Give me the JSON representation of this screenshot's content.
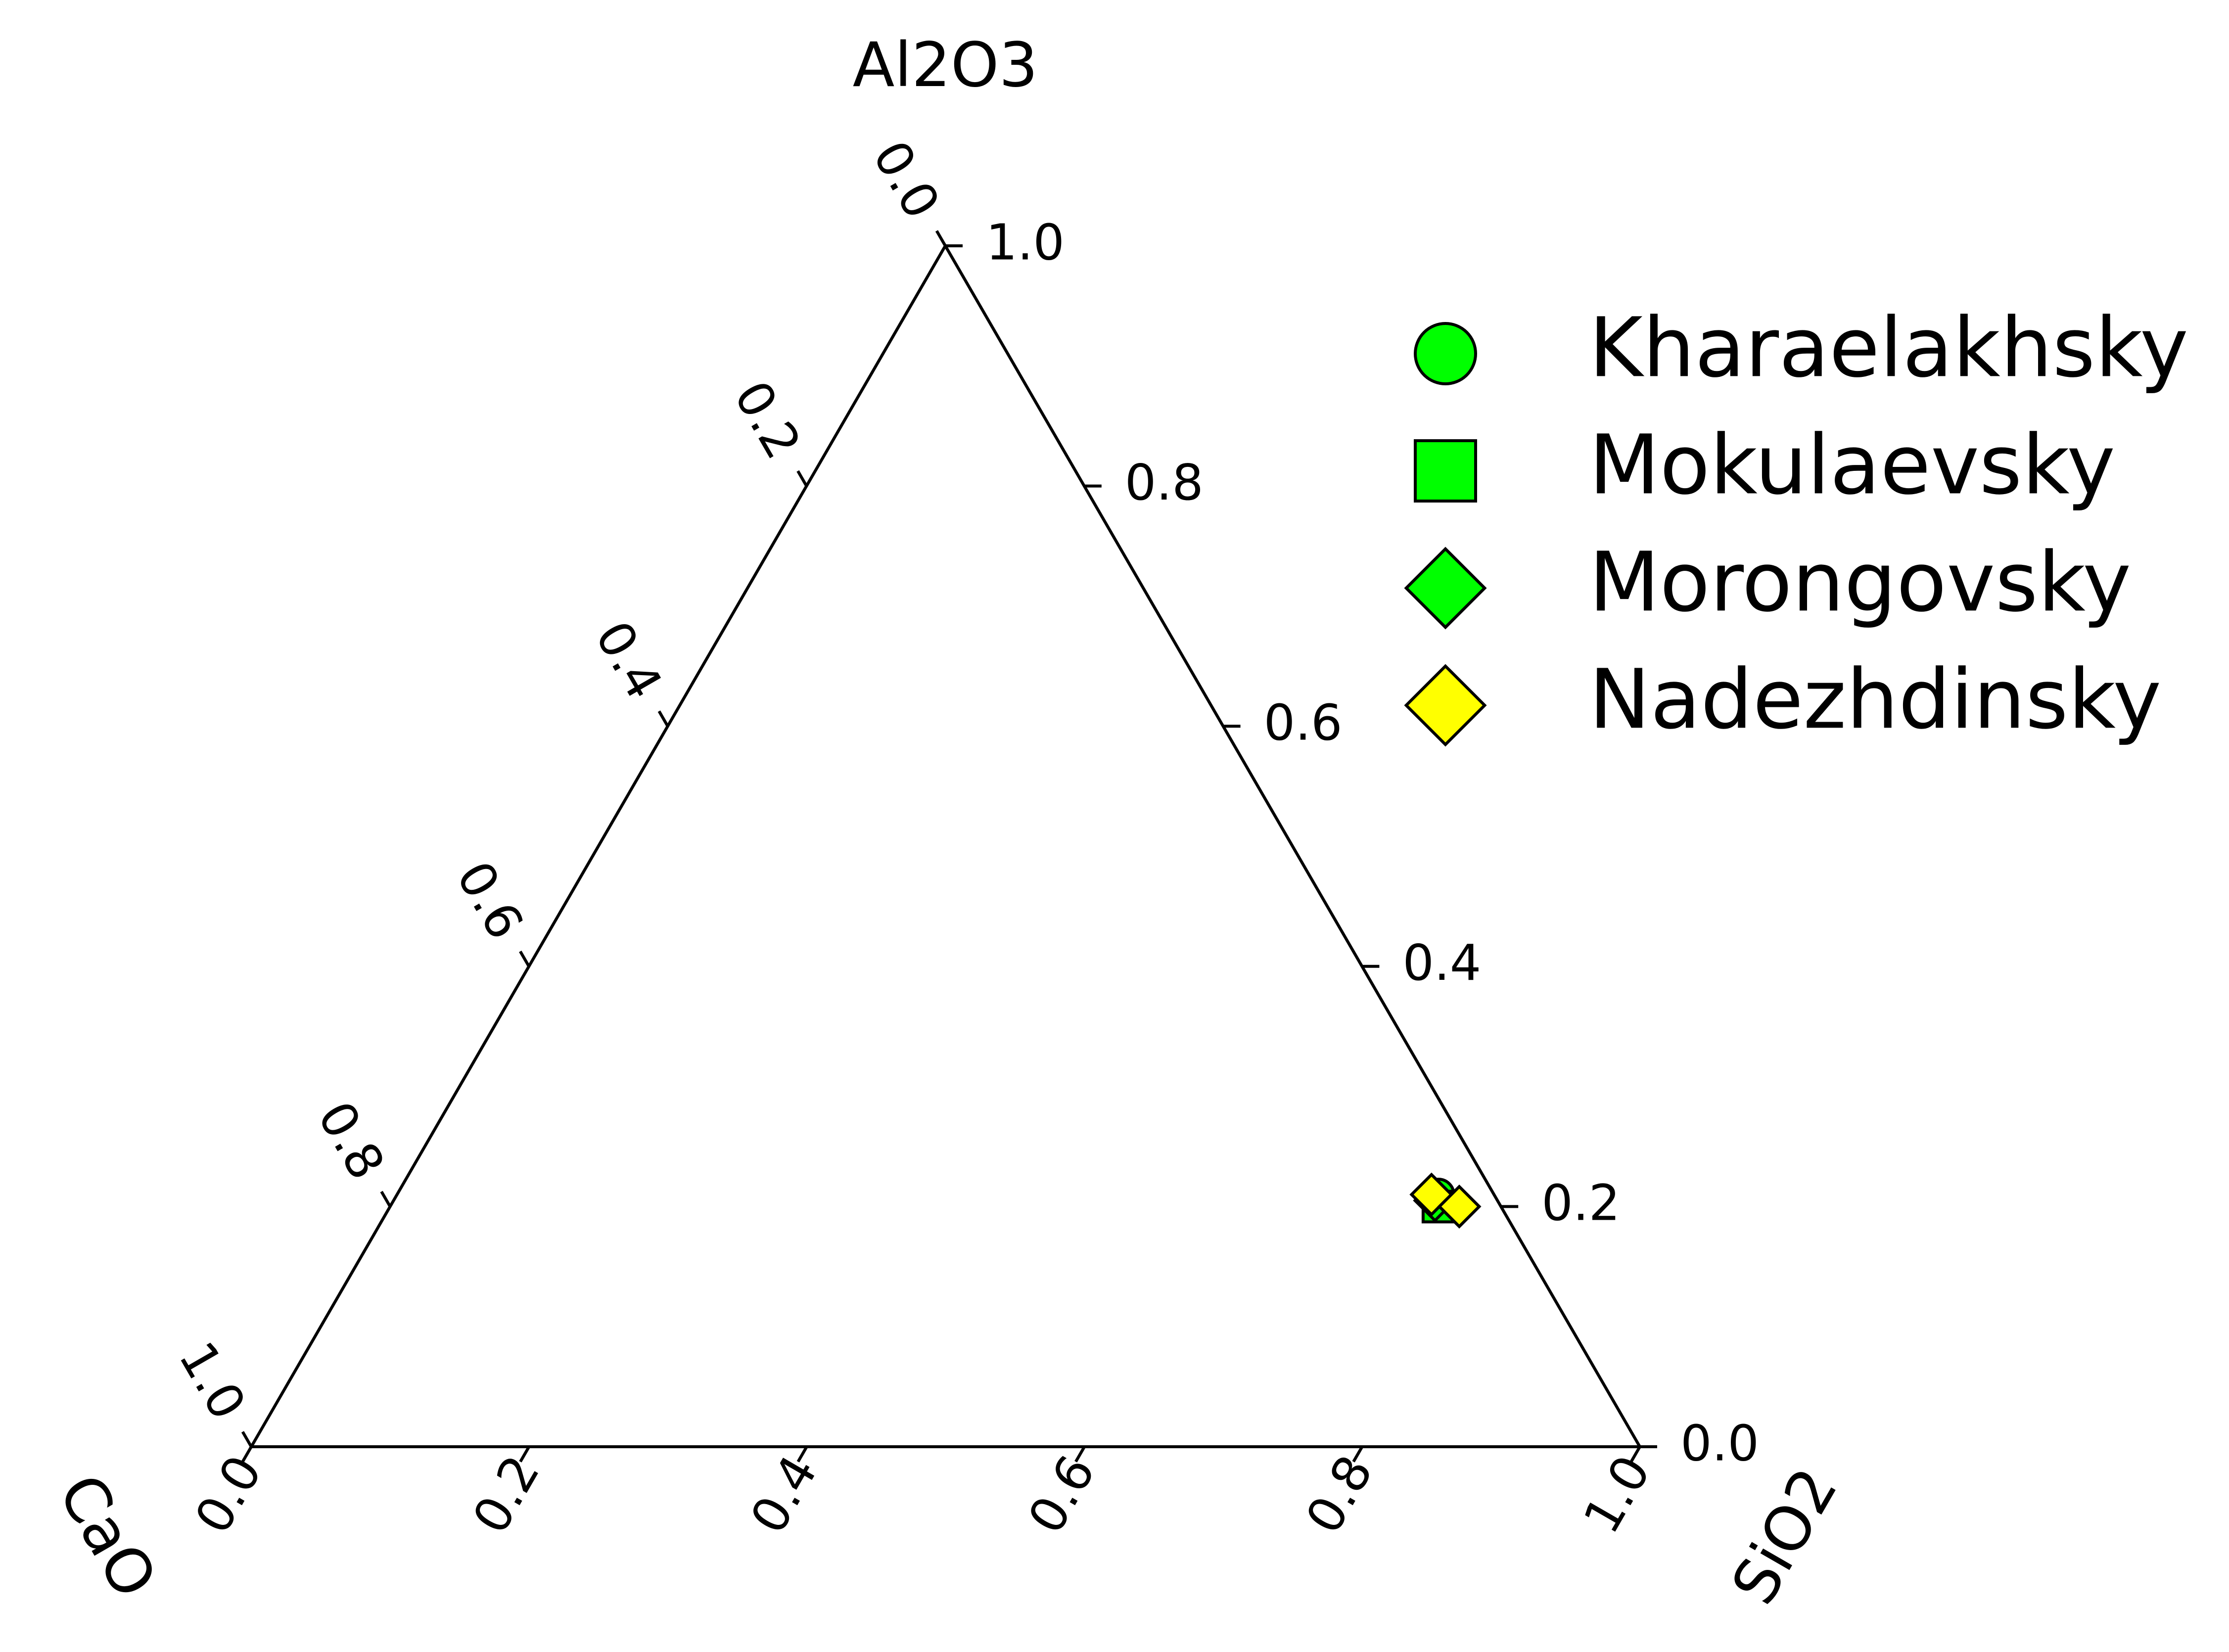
{
  "chart_data": {
    "type": "ternary-scatter",
    "axes": {
      "top": {
        "label": "Al2O3",
        "ticks": [
          "0.0",
          "0.2",
          "0.4",
          "0.6",
          "0.8",
          "1.0"
        ]
      },
      "left": {
        "label": "CaO",
        "ticks": [
          "0.0",
          "0.2",
          "0.4",
          "0.6",
          "0.8",
          "1.0"
        ]
      },
      "right": {
        "label": "SiO2",
        "ticks": [
          "0.0",
          "0.2",
          "0.4",
          "0.6",
          "0.8",
          "1.0"
        ]
      }
    },
    "limits": [
      0,
      1
    ],
    "grid": false,
    "legend_position": "top-right",
    "series": [
      {
        "name": "Kharaelakhsky",
        "marker": "circle",
        "color": "#00ff00",
        "points": [
          {
            "SiO2": 0.75,
            "Al2O3": 0.21,
            "CaO": 0.04
          }
        ]
      },
      {
        "name": "Mokulaevsky",
        "marker": "square",
        "color": "#00ff00",
        "points": [
          {
            "SiO2": 0.755,
            "Al2O3": 0.2,
            "CaO": 0.045
          }
        ]
      },
      {
        "name": "Morongovsky",
        "marker": "diamond",
        "color": "#00ff00",
        "points": [
          {
            "SiO2": 0.75,
            "Al2O3": 0.205,
            "CaO": 0.045
          }
        ]
      },
      {
        "name": "Nadezhdinsky",
        "marker": "diamond",
        "color": "#ffff00",
        "points": [
          {
            "SiO2": 0.745,
            "Al2O3": 0.21,
            "CaO": 0.045
          },
          {
            "SiO2": 0.77,
            "Al2O3": 0.2,
            "CaO": 0.03
          }
        ]
      }
    ]
  }
}
